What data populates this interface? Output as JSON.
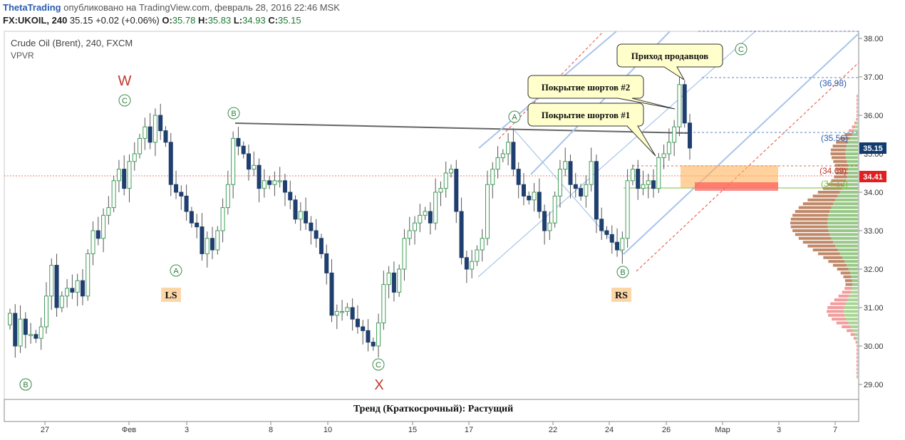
{
  "header": {
    "author": "ThetaTrading",
    "published_text": "опубликовано на TradingView.com, февраль 28, 2016 22:46 MSK",
    "symbol": "FX:UKOIL, 240",
    "last": "35.15",
    "change": "+0.02 (+0.06%)",
    "o_label": "O:",
    "o_value": "35.78",
    "h_label": "H:",
    "h_value": "35.83",
    "l_label": "L:",
    "l_value": "34.93",
    "c_label": "C:",
    "c_value": "35.15"
  },
  "chart_data": {
    "type": "candlestick",
    "title": "Crude Oil (Brent), 240, FXCM",
    "indicator": "VPVR",
    "ylim": [
      28.6,
      38.3
    ],
    "y_ticks": [
      "38.00",
      "37.00",
      "36.00",
      "35.00",
      "34.00",
      "33.00",
      "32.00",
      "31.00",
      "30.00",
      "29.00"
    ],
    "x_ticks": [
      "27",
      "Фев",
      "3",
      "8",
      "10",
      "15",
      "17",
      "22",
      "24",
      "26",
      "Мар",
      "3",
      "7"
    ],
    "current_price": "35.15",
    "ref_price": "34.41",
    "level_labels": [
      "(36.98)",
      "(35.56)",
      "(34.69)",
      "(34.12)"
    ],
    "wave_labels": [
      {
        "text": "W",
        "color": "#c0392b"
      },
      {
        "text": "X",
        "color": "#c0392b"
      },
      {
        "text": "C"
      },
      {
        "text": "A"
      },
      {
        "text": "B"
      },
      {
        "text": "C"
      },
      {
        "text": "B"
      },
      {
        "text": "A"
      },
      {
        "text": "B"
      },
      {
        "text": "C"
      },
      {
        "text": "B"
      }
    ],
    "pattern_labels": [
      "LS",
      "RS"
    ],
    "callouts": [
      "Приход продавцов",
      "Покрытие шортов #2",
      "Покрытие шортов #1"
    ],
    "footer": "Тренд (Краткосрочный): Растущий",
    "candles": [
      30.85,
      30.0,
      30.7,
      30.3,
      30.3,
      30.2,
      30.5,
      31.3,
      32.1,
      31.0,
      31.3,
      31.5,
      31.4,
      31.7,
      31.3,
      32.4,
      33.0,
      32.8,
      33.4,
      33.6,
      34.3,
      34.6,
      34.1,
      34.8,
      35.0,
      35.4,
      35.7,
      35.3,
      36.0,
      35.6,
      35.3,
      34.2,
      34.0,
      33.9,
      33.5,
      33.2,
      33.1,
      32.4,
      32.8,
      32.5,
      33.0,
      33.6,
      34.2,
      35.4,
      35.2,
      35.0,
      34.6,
      34.7,
      34.1,
      34.3,
      34.2,
      34.3,
      34.3,
      34.0,
      33.8,
      33.3,
      33.5,
      33.2,
      33.0,
      32.8,
      32.4,
      31.9,
      30.8,
      30.9,
      30.9,
      31.0,
      30.7,
      30.5,
      30.4,
      30.1,
      30.0,
      30.6,
      31.6,
      31.9,
      31.4,
      32.0,
      32.8,
      33.0,
      33.2,
      33.4,
      33.5,
      33.2,
      34.0,
      34.1,
      34.5,
      34.6,
      33.5,
      32.3,
      32.0,
      32.2,
      32.5,
      32.8,
      34.2,
      34.6,
      34.9,
      35.0,
      35.3,
      34.6,
      34.2,
      33.9,
      33.8,
      34.0,
      33.5,
      33.0,
      33.2,
      33.9,
      34.6,
      34.8,
      34.2,
      34.1,
      33.9,
      34.2,
      34.8,
      33.3,
      33.0,
      32.9,
      32.7,
      32.5,
      32.8,
      34.3,
      34.6,
      34.1,
      34.2,
      34.3,
      34.1,
      34.9,
      35.0,
      35.3,
      35.7,
      36.8,
      35.8,
      35.15
    ]
  }
}
